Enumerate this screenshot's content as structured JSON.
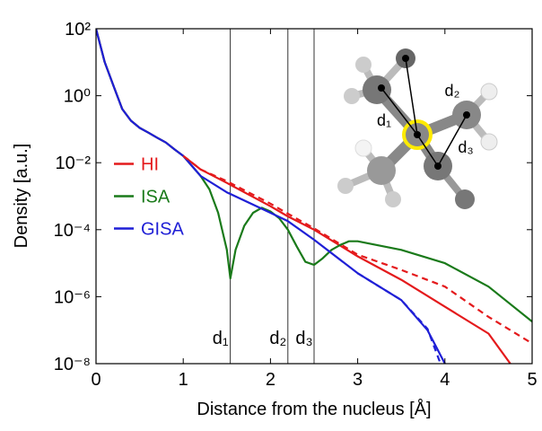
{
  "chart_data": {
    "type": "line",
    "xlabel": "Distance from the nucleus [Å]",
    "ylabel": "Density [a.u.]",
    "xlim": [
      0,
      5
    ],
    "xticks": [
      0,
      1,
      2,
      3,
      4,
      5
    ],
    "ylim": [
      1e-08,
      100
    ],
    "yscale": "log",
    "yticks": [
      {
        "value": 100,
        "label": "10²"
      },
      {
        "value": 1,
        "label": "10⁰"
      },
      {
        "value": 0.01,
        "label": "10⁻²"
      },
      {
        "value": 0.0001,
        "label": "10⁻⁴"
      },
      {
        "value": 1e-06,
        "label": "10⁻⁶"
      },
      {
        "value": 1e-08,
        "label": "10⁻⁸"
      }
    ],
    "legend": "center left",
    "series": [
      {
        "name": "HI",
        "color": "#e41a1c",
        "dashed": false,
        "x": [
          0,
          0.1,
          0.2,
          0.3,
          0.4,
          0.5,
          0.6,
          0.7,
          0.8,
          0.9,
          1.0,
          1.2,
          1.5,
          2.0,
          2.2,
          2.5,
          3.0,
          3.5,
          4.0,
          4.5,
          4.75
        ],
        "values": [
          100,
          10,
          2,
          0.4,
          0.18,
          0.11,
          0.079,
          0.056,
          0.04,
          0.025,
          0.016,
          0.0063,
          0.0025,
          0.0005,
          0.00025,
          0.0001,
          1.6e-05,
          3.2e-06,
          5e-07,
          7.9e-08,
          1e-08
        ]
      },
      {
        "name": "ISA",
        "color": "#1a7a1a",
        "dashed": false,
        "x": [
          0,
          0.1,
          0.2,
          0.3,
          0.4,
          0.5,
          0.6,
          0.7,
          0.8,
          0.9,
          1.0,
          1.2,
          1.3,
          1.4,
          1.5,
          1.54,
          1.6,
          1.7,
          1.8,
          1.9,
          2.0,
          2.1,
          2.2,
          2.3,
          2.4,
          2.5,
          2.6,
          2.7,
          2.8,
          2.9,
          3.0,
          3.5,
          4.0,
          4.5,
          5.0
        ],
        "values": [
          100,
          10,
          2,
          0.4,
          0.18,
          0.11,
          0.079,
          0.056,
          0.04,
          0.025,
          0.016,
          0.004,
          0.0016,
          0.00032,
          2.5e-05,
          3.5e-06,
          2.5e-05,
          0.00013,
          0.00032,
          0.00045,
          0.00035,
          0.00022,
          0.0001,
          3.2e-05,
          1.1e-05,
          8.9e-06,
          1.4e-05,
          2.5e-05,
          3.5e-05,
          4.5e-05,
          4.5e-05,
          2.5e-05,
          1e-05,
          2e-06,
          1.8e-07
        ]
      },
      {
        "name": "GISA",
        "color": "#1f1fd6",
        "dashed": false,
        "x": [
          0,
          0.1,
          0.2,
          0.3,
          0.4,
          0.5,
          0.6,
          0.7,
          0.8,
          0.9,
          1.0,
          1.2,
          1.5,
          2.0,
          2.2,
          2.5,
          3.0,
          3.5,
          3.8,
          4.0
        ],
        "values": [
          100,
          10,
          2,
          0.4,
          0.18,
          0.11,
          0.079,
          0.056,
          0.04,
          0.025,
          0.016,
          0.004,
          0.0013,
          0.00032,
          0.00018,
          5e-05,
          5e-06,
          7.9e-07,
          1e-07,
          1e-08
        ]
      },
      {
        "color": "#e41a1c",
        "dashed": true,
        "x": [
          1.0,
          1.2,
          1.5,
          2.0,
          2.2,
          2.5,
          3.0,
          3.5,
          4.0,
          4.5,
          5.0
        ],
        "values": [
          0.016,
          0.0063,
          0.0028,
          0.0006,
          0.0003,
          0.00011,
          1.8e-05,
          6.3e-06,
          2e-06,
          2.5e-07,
          4e-08
        ]
      },
      {
        "color": "#1f1fd6",
        "dashed": true,
        "x": [
          3.0,
          3.5,
          3.8,
          3.95
        ],
        "values": [
          5e-06,
          7.9e-07,
          1.1e-07,
          1e-08
        ]
      }
    ],
    "vlines": [
      {
        "x": 1.54,
        "label": "d₁"
      },
      {
        "x": 2.2,
        "label": "d₂"
      },
      {
        "x": 2.5,
        "label": "d₃"
      }
    ],
    "inset_labels": [
      "d₁",
      "d₂",
      "d₃"
    ]
  }
}
